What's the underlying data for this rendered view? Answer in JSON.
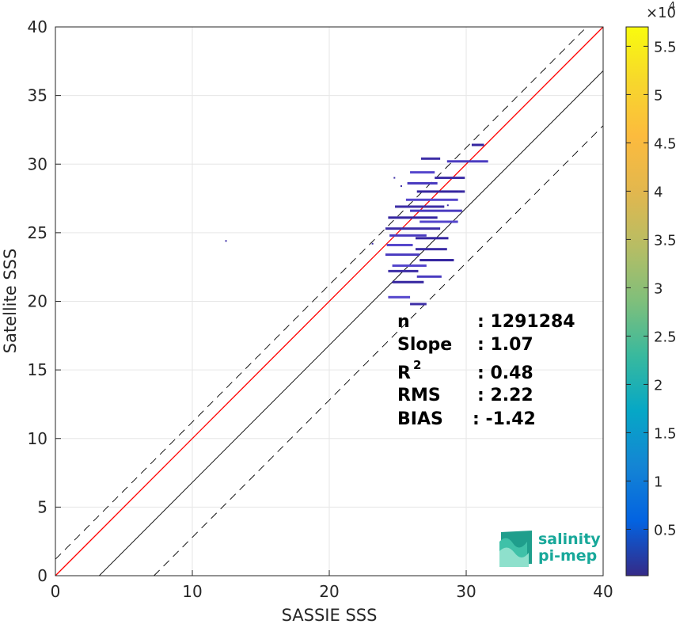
{
  "chart_data": {
    "type": "heatmap",
    "xlabel": "SASSIE SSS",
    "ylabel": "Satellite SSS",
    "xlim": [
      0,
      40
    ],
    "ylim": [
      0,
      40
    ],
    "xticks": [
      0,
      10,
      20,
      30,
      40
    ],
    "yticks": [
      0,
      5,
      10,
      15,
      20,
      25,
      30,
      35,
      40
    ],
    "grid": true,
    "colorbar": {
      "exponent_label": "×10",
      "exponent_power": "4",
      "ticks": [
        "0.5",
        "1",
        "1.5",
        "2",
        "2.5",
        "3",
        "3.5",
        "4",
        "4.5",
        "5",
        "5.5"
      ],
      "tick_values": [
        0.5,
        1,
        1.5,
        2,
        2.5,
        3,
        3.5,
        4,
        4.5,
        5,
        5.5
      ],
      "range": [
        0.02,
        5.7
      ],
      "colormap": "parula"
    },
    "lines": [
      {
        "name": "identity",
        "slope": 1,
        "intercept": 0,
        "color": "#ff0000",
        "style": "solid"
      },
      {
        "name": "bias",
        "slope": 1,
        "intercept": -3.2,
        "color": "#000000",
        "style": "solid"
      },
      {
        "name": "upper-bound",
        "slope": 1,
        "intercept": 1.2,
        "color": "#000000",
        "style": "dashed"
      },
      {
        "name": "lower-bound",
        "slope": 1,
        "intercept": -7.2,
        "color": "#000000",
        "style": "dashed"
      }
    ],
    "density_segments": [
      {
        "x0": 26.7,
        "x1": 28.1,
        "y": 30.4
      },
      {
        "x0": 28.6,
        "x1": 31.6,
        "y": 30.2
      },
      {
        "x0": 30.4,
        "x1": 31.3,
        "y": 31.4
      },
      {
        "x0": 25.9,
        "x1": 27.7,
        "y": 29.4
      },
      {
        "x0": 27.7,
        "x1": 29.9,
        "y": 29.0
      },
      {
        "x0": 25.7,
        "x1": 27.9,
        "y": 28.6
      },
      {
        "x0": 26.4,
        "x1": 29.9,
        "y": 28.0
      },
      {
        "x0": 25.6,
        "x1": 29.4,
        "y": 27.4
      },
      {
        "x0": 24.8,
        "x1": 28.4,
        "y": 26.9
      },
      {
        "x0": 25.9,
        "x1": 29.7,
        "y": 26.6
      },
      {
        "x0": 24.3,
        "x1": 27.9,
        "y": 26.1
      },
      {
        "x0": 26.6,
        "x1": 29.4,
        "y": 25.8
      },
      {
        "x0": 24.1,
        "x1": 28.1,
        "y": 25.3
      },
      {
        "x0": 24.4,
        "x1": 27.1,
        "y": 24.8
      },
      {
        "x0": 26.3,
        "x1": 28.7,
        "y": 24.6
      },
      {
        "x0": 24.2,
        "x1": 26.1,
        "y": 24.1
      },
      {
        "x0": 26.3,
        "x1": 28.6,
        "y": 23.8
      },
      {
        "x0": 24.1,
        "x1": 26.6,
        "y": 23.4
      },
      {
        "x0": 26.6,
        "x1": 29.1,
        "y": 23.0
      },
      {
        "x0": 24.6,
        "x1": 27.1,
        "y": 22.6
      },
      {
        "x0": 24.3,
        "x1": 26.5,
        "y": 22.2
      },
      {
        "x0": 26.4,
        "x1": 28.2,
        "y": 21.8
      },
      {
        "x0": 24.6,
        "x1": 26.9,
        "y": 21.4
      },
      {
        "x0": 24.3,
        "x1": 25.9,
        "y": 20.3
      },
      {
        "x0": 25.9,
        "x1": 27.1,
        "y": 19.8
      }
    ],
    "stats": [
      {
        "label": "n",
        "value": ": 1291284"
      },
      {
        "label": "Slope",
        "value": ": 1.07"
      },
      {
        "label": "R",
        "sup": "2",
        "value": ": 0.48"
      },
      {
        "label": "RMS",
        "value": ": 2.22"
      },
      {
        "label": "BIAS",
        "value": ": -1.42"
      }
    ]
  },
  "logo": {
    "line1": "salinity",
    "line2": "pi-mep"
  }
}
